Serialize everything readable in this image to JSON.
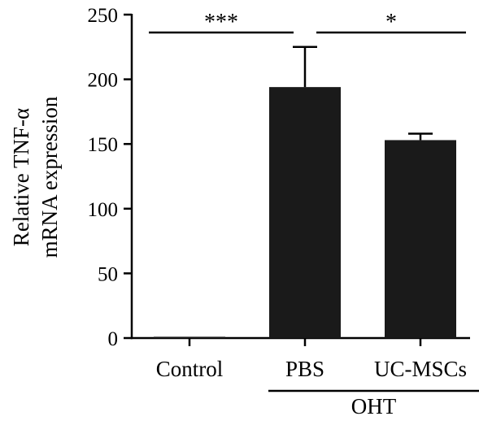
{
  "chart_data": {
    "type": "bar",
    "categories": [
      "Control",
      "PBS",
      "UC-MSCs"
    ],
    "values": [
      1,
      194,
      153
    ],
    "errors": [
      0,
      31,
      5
    ],
    "bar_color": "#1a1a1a",
    "ylabel": [
      "Relative TNF-α",
      "mRNA expression"
    ],
    "ylim": [
      0,
      250
    ],
    "yticks": [
      0,
      50,
      100,
      150,
      200,
      250
    ],
    "grid": false,
    "legend": "none",
    "group": {
      "label": "OHT",
      "categories": [
        "PBS",
        "UC-MSCs"
      ]
    },
    "significance": [
      {
        "from": "Control",
        "to": "PBS",
        "label": "***"
      },
      {
        "from": "PBS",
        "to": "UC-MSCs",
        "label": "*"
      }
    ]
  }
}
